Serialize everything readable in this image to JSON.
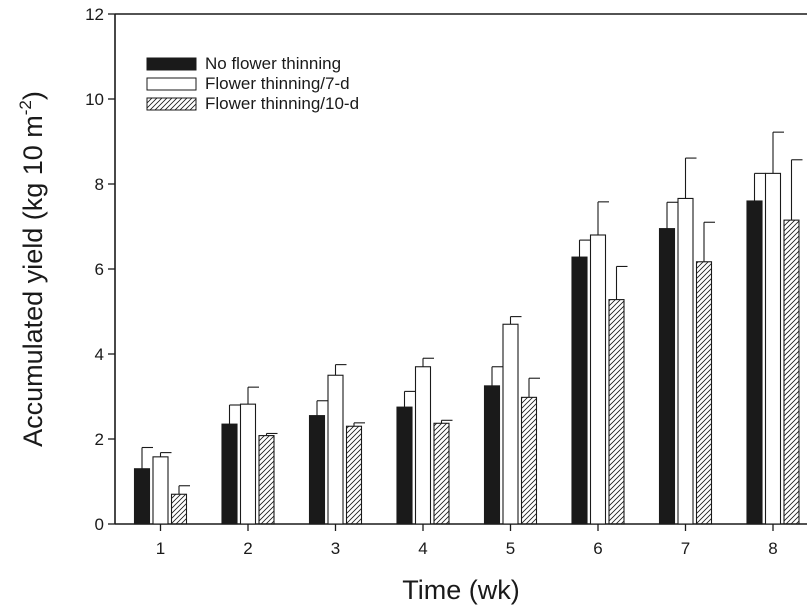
{
  "chart_data": {
    "type": "bar",
    "xlabel": "Time (wk)",
    "ylabel": "Accumulated yield (kg 10 m",
    "ylabel_sup": "-2",
    "ylabel_end": ")",
    "ylim": [
      0,
      12
    ],
    "yticks": [
      0,
      2,
      4,
      6,
      8,
      10,
      12
    ],
    "categories": [
      "1",
      "2",
      "3",
      "4",
      "5",
      "6",
      "7",
      "8"
    ],
    "grid": false,
    "legend_position": "top-left",
    "error_bars": true,
    "series": [
      {
        "name": "No flower thinning",
        "fill": "solid",
        "color": "#1a1a1a",
        "values": [
          1.3,
          2.35,
          2.55,
          2.75,
          3.25,
          6.28,
          6.95,
          7.6
        ],
        "errors": [
          0.5,
          0.45,
          0.35,
          0.37,
          0.45,
          0.4,
          0.62,
          0.65
        ]
      },
      {
        "name": "Flower thinning/7-d",
        "fill": "open",
        "color": "#1a1a1a",
        "values": [
          1.58,
          2.82,
          3.5,
          3.7,
          4.7,
          6.8,
          7.66,
          8.25
        ],
        "errors": [
          0.1,
          0.4,
          0.25,
          0.2,
          0.18,
          0.78,
          0.95,
          0.97
        ]
      },
      {
        "name": "Flower thinning/10-d",
        "fill": "hatched",
        "color": "#1a1a1a",
        "values": [
          0.7,
          2.08,
          2.3,
          2.37,
          2.98,
          5.28,
          6.17,
          7.15
        ],
        "errors": [
          0.2,
          0.05,
          0.08,
          0.07,
          0.45,
          0.78,
          0.93,
          1.42
        ]
      }
    ]
  }
}
